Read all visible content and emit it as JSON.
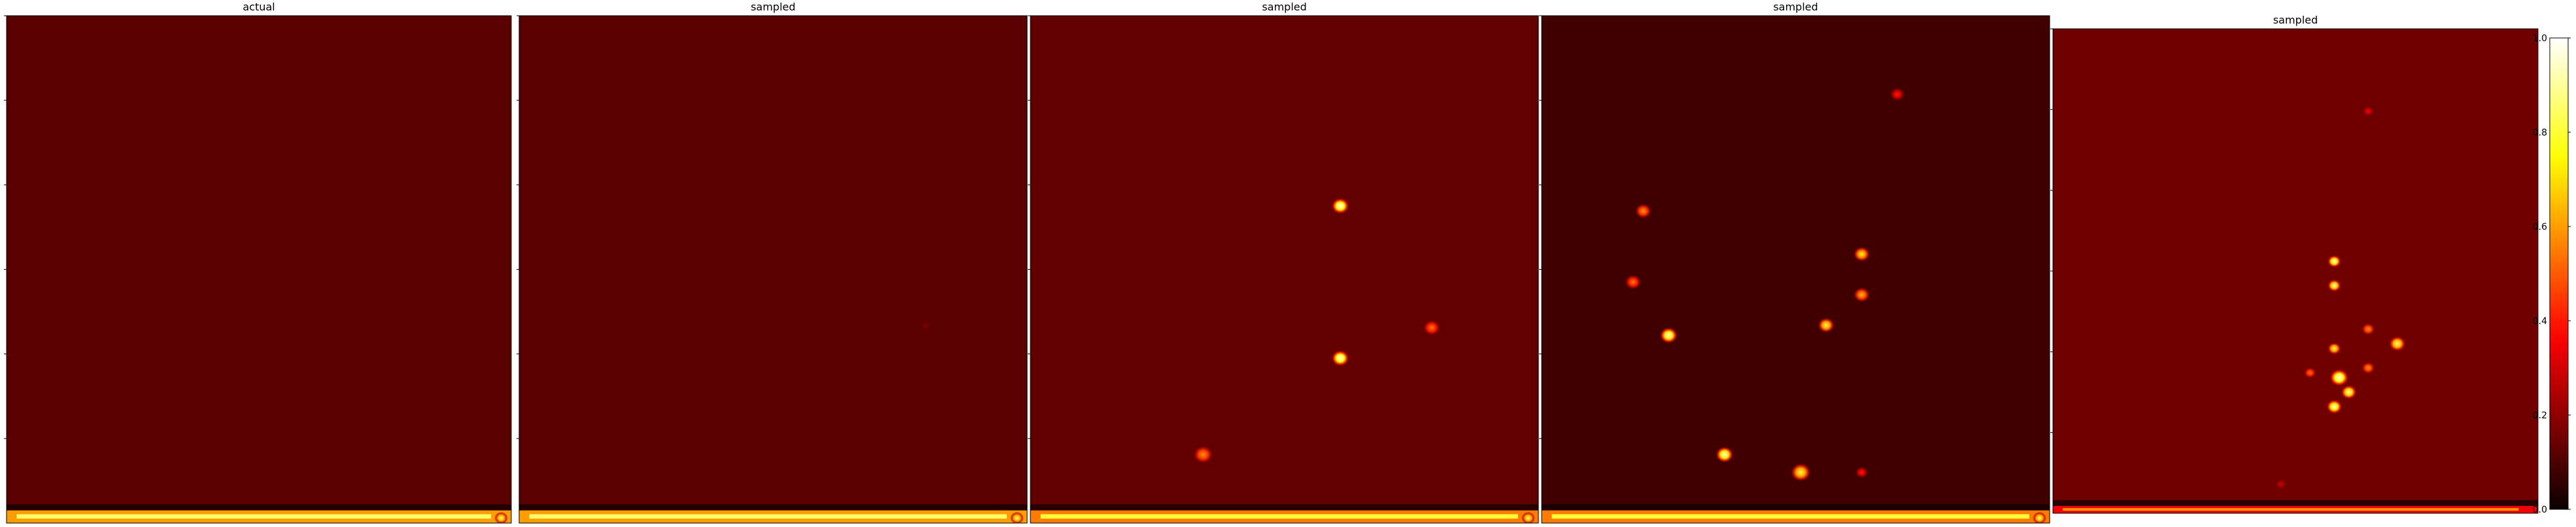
{
  "chart_data": {
    "type": "heatmap",
    "colormap": "hot",
    "colorbar": {
      "min": 0.0,
      "max": 1.0,
      "ticks": [
        "0.0",
        "0.2",
        "0.4",
        "0.6",
        "0.8",
        "1.0"
      ]
    },
    "panels": [
      {
        "title": "actual",
        "background": 0.12,
        "band": {
          "level": 0.6,
          "y_from": 0.975,
          "y_to": 1.0
        },
        "blobs": [
          {
            "x": 0.98,
            "y": 0.99,
            "r": 0.012,
            "v": 0.85
          }
        ]
      },
      {
        "title": "sampled",
        "background": 0.12,
        "band": {
          "level": 0.6,
          "y_from": 0.975,
          "y_to": 1.0
        },
        "blobs": [
          {
            "x": 0.8,
            "y": 0.61,
            "r": 0.012,
            "v": 0.18
          },
          {
            "x": 0.98,
            "y": 0.99,
            "r": 0.012,
            "v": 0.85
          }
        ]
      },
      {
        "title": "sampled",
        "background": 0.13,
        "band": {
          "level": 0.55,
          "y_from": 0.975,
          "y_to": 1.0
        },
        "blobs": [
          {
            "x": 0.61,
            "y": 0.375,
            "r": 0.016,
            "v": 1.0
          },
          {
            "x": 0.61,
            "y": 0.675,
            "r": 0.016,
            "v": 1.0
          },
          {
            "x": 0.79,
            "y": 0.615,
            "r": 0.016,
            "v": 0.55
          },
          {
            "x": 0.34,
            "y": 0.865,
            "r": 0.018,
            "v": 0.6
          },
          {
            "x": 0.98,
            "y": 0.99,
            "r": 0.012,
            "v": 0.85
          }
        ]
      },
      {
        "title": "sampled",
        "background": 0.08,
        "band": {
          "level": 0.55,
          "y_from": 0.975,
          "y_to": 1.0
        },
        "blobs": [
          {
            "x": 0.7,
            "y": 0.155,
            "r": 0.014,
            "v": 0.4
          },
          {
            "x": 0.2,
            "y": 0.385,
            "r": 0.015,
            "v": 0.6
          },
          {
            "x": 0.63,
            "y": 0.47,
            "r": 0.015,
            "v": 0.75
          },
          {
            "x": 0.18,
            "y": 0.525,
            "r": 0.015,
            "v": 0.55
          },
          {
            "x": 0.63,
            "y": 0.55,
            "r": 0.015,
            "v": 0.65
          },
          {
            "x": 0.56,
            "y": 0.61,
            "r": 0.015,
            "v": 0.8
          },
          {
            "x": 0.25,
            "y": 0.63,
            "r": 0.016,
            "v": 0.95
          },
          {
            "x": 0.36,
            "y": 0.865,
            "r": 0.016,
            "v": 0.95
          },
          {
            "x": 0.51,
            "y": 0.9,
            "r": 0.018,
            "v": 0.8
          },
          {
            "x": 0.63,
            "y": 0.9,
            "r": 0.012,
            "v": 0.4
          },
          {
            "x": 0.98,
            "y": 0.99,
            "r": 0.012,
            "v": 0.85
          }
        ]
      },
      {
        "title": "sampled",
        "background": 0.15,
        "band": {
          "level": 0.35,
          "y_from": 0.985,
          "y_to": 1.0
        },
        "blobs": [
          {
            "x": 0.65,
            "y": 0.17,
            "r": 0.012,
            "v": 0.35
          },
          {
            "x": 0.58,
            "y": 0.48,
            "r": 0.013,
            "v": 0.95
          },
          {
            "x": 0.58,
            "y": 0.53,
            "r": 0.013,
            "v": 0.9
          },
          {
            "x": 0.65,
            "y": 0.62,
            "r": 0.013,
            "v": 0.6
          },
          {
            "x": 0.71,
            "y": 0.65,
            "r": 0.016,
            "v": 0.85
          },
          {
            "x": 0.58,
            "y": 0.66,
            "r": 0.013,
            "v": 0.8
          },
          {
            "x": 0.65,
            "y": 0.7,
            "r": 0.013,
            "v": 0.6
          },
          {
            "x": 0.53,
            "y": 0.71,
            "r": 0.012,
            "v": 0.55
          },
          {
            "x": 0.59,
            "y": 0.72,
            "r": 0.018,
            "v": 1.0
          },
          {
            "x": 0.61,
            "y": 0.75,
            "r": 0.015,
            "v": 0.9
          },
          {
            "x": 0.58,
            "y": 0.78,
            "r": 0.015,
            "v": 0.95
          },
          {
            "x": 0.47,
            "y": 0.94,
            "r": 0.012,
            "v": 0.3
          }
        ]
      }
    ]
  }
}
